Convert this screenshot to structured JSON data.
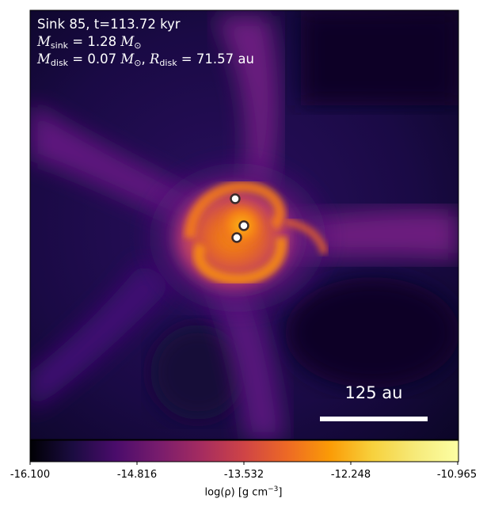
{
  "annotation": {
    "line1": "Sink 85, t=113.72 kyr",
    "m_sink_sym": "M",
    "m_sink_sub": "sink",
    "m_sink_val": " = 1.28 ",
    "m_sun_sym": "M",
    "m_sun_sub": "⊙",
    "m_disk_sym": "M",
    "m_disk_sub": "disk",
    "m_disk_val": " = 0.07 ",
    "r_disk_sym": "R",
    "r_disk_sub": "disk",
    "r_disk_val": " = 71.57 au",
    "comma": ", "
  },
  "scale_bar": {
    "label": "125 au"
  },
  "sinks": [
    {
      "id": "sink-1"
    },
    {
      "id": "sink-2"
    },
    {
      "id": "sink-3"
    }
  ],
  "colorbar": {
    "colormap": "inferno",
    "ticks": [
      "-16.100",
      "-14.816",
      "-13.532",
      "-12.248",
      "-10.965"
    ],
    "label_prefix": "log(ρ) [g cm",
    "label_exp": "−3",
    "label_suffix": "]",
    "range": [
      -16.1,
      -10.965
    ]
  },
  "colors": {
    "map_dark": "#0b0626",
    "map_purple": "#3b0f6f",
    "map_magenta": "#8c2981",
    "map_orange": "#f57d15",
    "map_yellow": "#fcffa4"
  }
}
